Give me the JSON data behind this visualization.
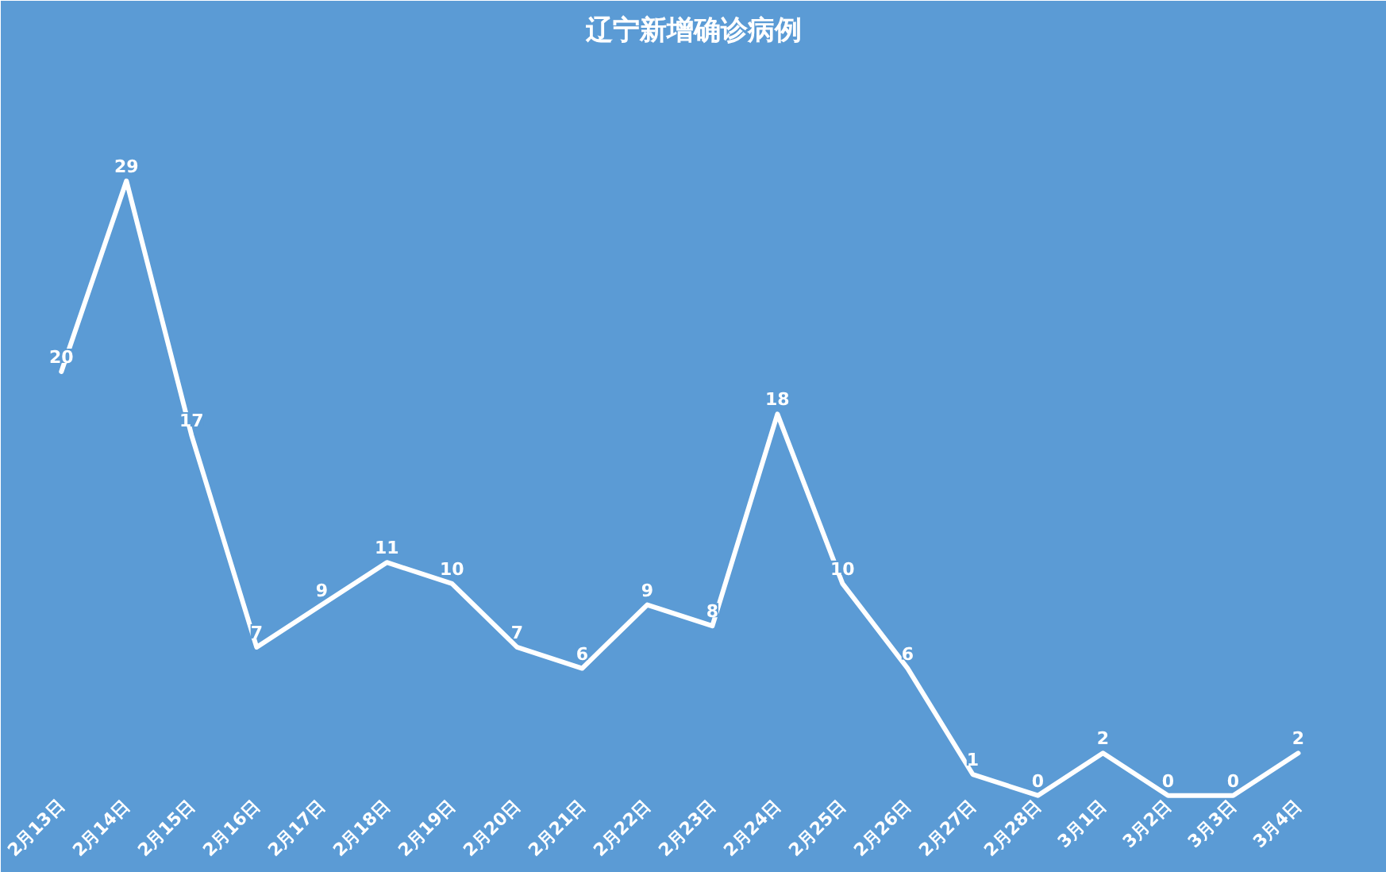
{
  "chart_data": {
    "type": "line",
    "title": "辽宁新增确诊病例",
    "categories": [
      "2月13日",
      "2月14日",
      "2月15日",
      "2月16日",
      "2月17日",
      "2月18日",
      "2月19日",
      "2月20日",
      "2月21日",
      "2月22日",
      "2月23日",
      "2月24日",
      "2月25日",
      "2月26日",
      "2月27日",
      "2月28日",
      "3月1日",
      "3月2日",
      "3月3日",
      "3月4日"
    ],
    "series": [
      {
        "color": "#ffffff",
        "values": [
          20,
          29,
          17,
          7,
          9,
          11,
          10,
          7,
          6,
          9,
          8,
          18,
          10,
          6,
          1,
          0,
          2,
          0,
          0,
          2
        ]
      }
    ],
    "data_labels": true,
    "grid": false,
    "marker": "none",
    "line_style": "solid",
    "tick_labels": "x"
  }
}
